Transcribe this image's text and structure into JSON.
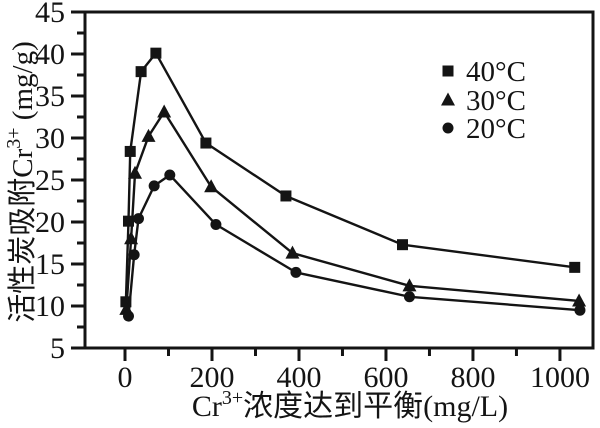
{
  "chart_data": {
    "type": "line",
    "title": "",
    "xlabel": "Cr3+ 浓度达到平衡 (mg/L)",
    "xlabel_parts": [
      {
        "t": "Cr"
      },
      {
        "t": "3+",
        "sup": true
      },
      {
        "t": "浓度达到平衡(mg/L)"
      }
    ],
    "ylabel": "活性炭吸附 Cr3+ (mg/g)",
    "ylabel_parts": [
      {
        "t": "活性炭吸附"
      },
      {
        "t": "Cr"
      },
      {
        "t": "3+",
        "sup": true
      },
      {
        "t": " (mg/g)"
      }
    ],
    "xlim": [
      -92,
      1076
    ],
    "ylim": [
      5,
      45
    ],
    "x_major_ticks": [
      0,
      200,
      400,
      600,
      800,
      1000
    ],
    "x_minor_ticks": [
      100,
      300,
      500,
      700,
      900
    ],
    "y_major_ticks": [
      5,
      10,
      15,
      20,
      25,
      30,
      35,
      40,
      45
    ],
    "y_minor_ticks": [
      7.5,
      12.5,
      17.5,
      22.5,
      27.5,
      32.5,
      37.5,
      42.5
    ],
    "grid": false,
    "legend_position": "upper-right",
    "ink_color": "#141414",
    "background_color": "#ffffff",
    "series": [
      {
        "name": "40°C",
        "marker": "square",
        "x": [
          2,
          8,
          12,
          37,
          71,
          186,
          370,
          638,
          1034
        ],
        "y": [
          10.5,
          20.1,
          28.4,
          37.9,
          40.1,
          29.4,
          23.1,
          17.3,
          14.6
        ]
      },
      {
        "name": "30°C",
        "marker": "triangle",
        "x": [
          3,
          14,
          23,
          54,
          90,
          198,
          385,
          654,
          1044
        ],
        "y": [
          9.6,
          18.0,
          25.8,
          30.2,
          33.1,
          24.2,
          16.3,
          12.4,
          10.6
        ]
      },
      {
        "name": "20°C",
        "marker": "circle",
        "x": [
          8,
          21,
          31,
          67,
          103,
          209,
          393,
          654,
          1046
        ],
        "y": [
          8.8,
          16.1,
          20.4,
          24.3,
          25.6,
          19.7,
          14.0,
          11.1,
          9.5
        ]
      }
    ]
  }
}
